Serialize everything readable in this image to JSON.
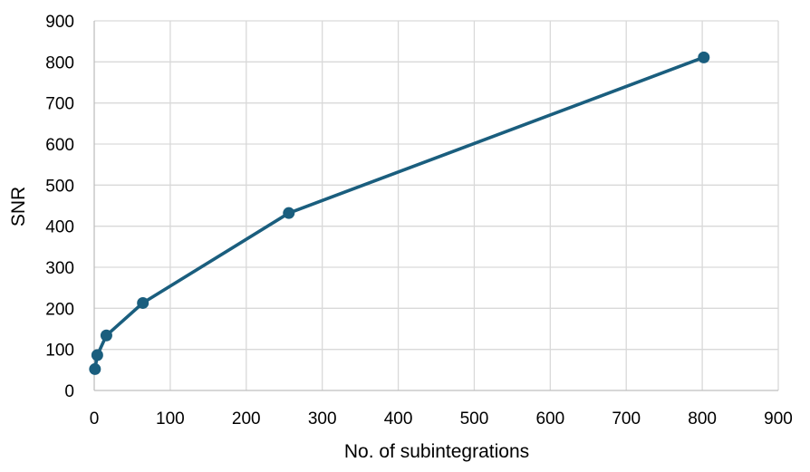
{
  "chart_data": {
    "type": "line",
    "title": "",
    "xlabel": "No. of subintegrations",
    "ylabel": "SNR",
    "xlim": [
      0,
      900
    ],
    "ylim": [
      0,
      900
    ],
    "x_ticks": [
      0,
      100,
      200,
      300,
      400,
      500,
      600,
      700,
      800,
      900
    ],
    "y_ticks": [
      0,
      100,
      200,
      300,
      400,
      500,
      600,
      700,
      800,
      900
    ],
    "grid": true,
    "legend": "none",
    "series": [
      {
        "color": "#1a5e7e",
        "marker": "circle",
        "points": [
          {
            "x": 1,
            "y": 52
          },
          {
            "x": 4,
            "y": 86
          },
          {
            "x": 16,
            "y": 134
          },
          {
            "x": 64,
            "y": 213
          },
          {
            "x": 256,
            "y": 432
          },
          {
            "x": 802,
            "y": 811
          }
        ]
      }
    ]
  }
}
